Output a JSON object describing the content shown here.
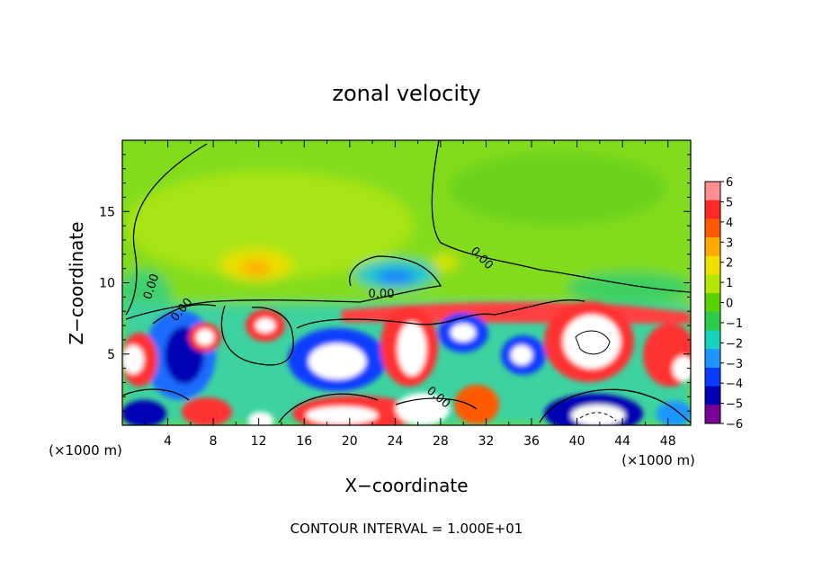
{
  "chart_data": {
    "type": "heatmap",
    "title": "zonal velocity",
    "xlabel": "X−coordinate",
    "ylabel": "Z−coordinate",
    "x_unit_left": "(×1000 m)",
    "x_unit_right": "(×1000 m)",
    "footer": "CONTOUR INTERVAL = 1.000E+01",
    "xlim": [
      0,
      50
    ],
    "ylim": [
      0,
      20
    ],
    "x_ticks": [
      4,
      8,
      12,
      16,
      20,
      24,
      28,
      32,
      36,
      40,
      44,
      48
    ],
    "y_ticks": [
      5,
      10,
      15
    ],
    "colorbar": {
      "range": [
        -6,
        6
      ],
      "ticks": [
        "6",
        "5",
        "4",
        "3",
        "2",
        "1",
        "0",
        "−1",
        "−2",
        "−3",
        "−4",
        "−5",
        "−6"
      ],
      "colors": [
        "#ff8f8f",
        "#ff2828",
        "#ff5a00",
        "#ffaa00",
        "#f0e000",
        "#b4e600",
        "#5ad200",
        "#2acc4a",
        "#17d3be",
        "#1e96ff",
        "#0a3cff",
        "#0000b4",
        "#780096"
      ]
    },
    "contour_labels": [
      "0.00",
      "0.00",
      "0.00",
      "0.00",
      "0.00"
    ],
    "grid": false,
    "legend": "colorbar-right"
  }
}
